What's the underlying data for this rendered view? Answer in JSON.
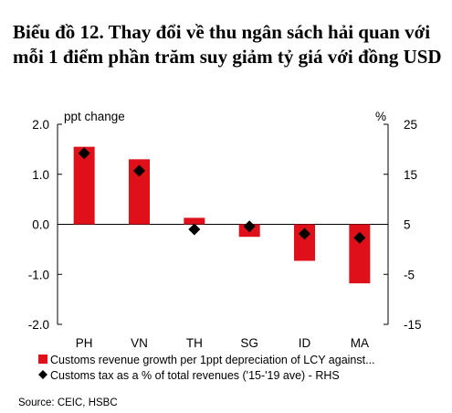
{
  "title": "Biểu đồ 12. Thay đổi về thu ngân sách hải quan với mỗi 1 điểm phần trăm suy giảm tỷ giá với đồng USD",
  "source": "Source: CEIC, HSBC",
  "chart_data": {
    "type": "bar",
    "categories": [
      "PH",
      "VN",
      "TH",
      "SG",
      "ID",
      "MA"
    ],
    "y_left": {
      "label": "ppt change",
      "ticks": [
        "2.0",
        "1.0",
        "0.0",
        "-1.0",
        "-2.0"
      ],
      "ylim": [
        -2.0,
        2.0
      ]
    },
    "y_right": {
      "label": "%",
      "ticks": [
        "25",
        "15",
        "5",
        "-5",
        "-15"
      ],
      "ylim": [
        -15,
        25
      ]
    },
    "series": [
      {
        "name": "Customs revenue growth per 1ppt depreciation of LCY against...",
        "axis": "left",
        "kind": "bar",
        "color": "#e0101a",
        "values": [
          1.55,
          1.3,
          0.13,
          -0.25,
          -0.73,
          -1.18
        ]
      },
      {
        "name": "Customs tax as a % of total revenues ('15-'19 ave) - RHS",
        "axis": "right",
        "kind": "marker",
        "marker": "diamond",
        "color": "#000000",
        "values": [
          19.2,
          15.7,
          4.0,
          4.6,
          3.1,
          2.3
        ]
      }
    ],
    "legend_position": "bottom",
    "grid": false
  }
}
